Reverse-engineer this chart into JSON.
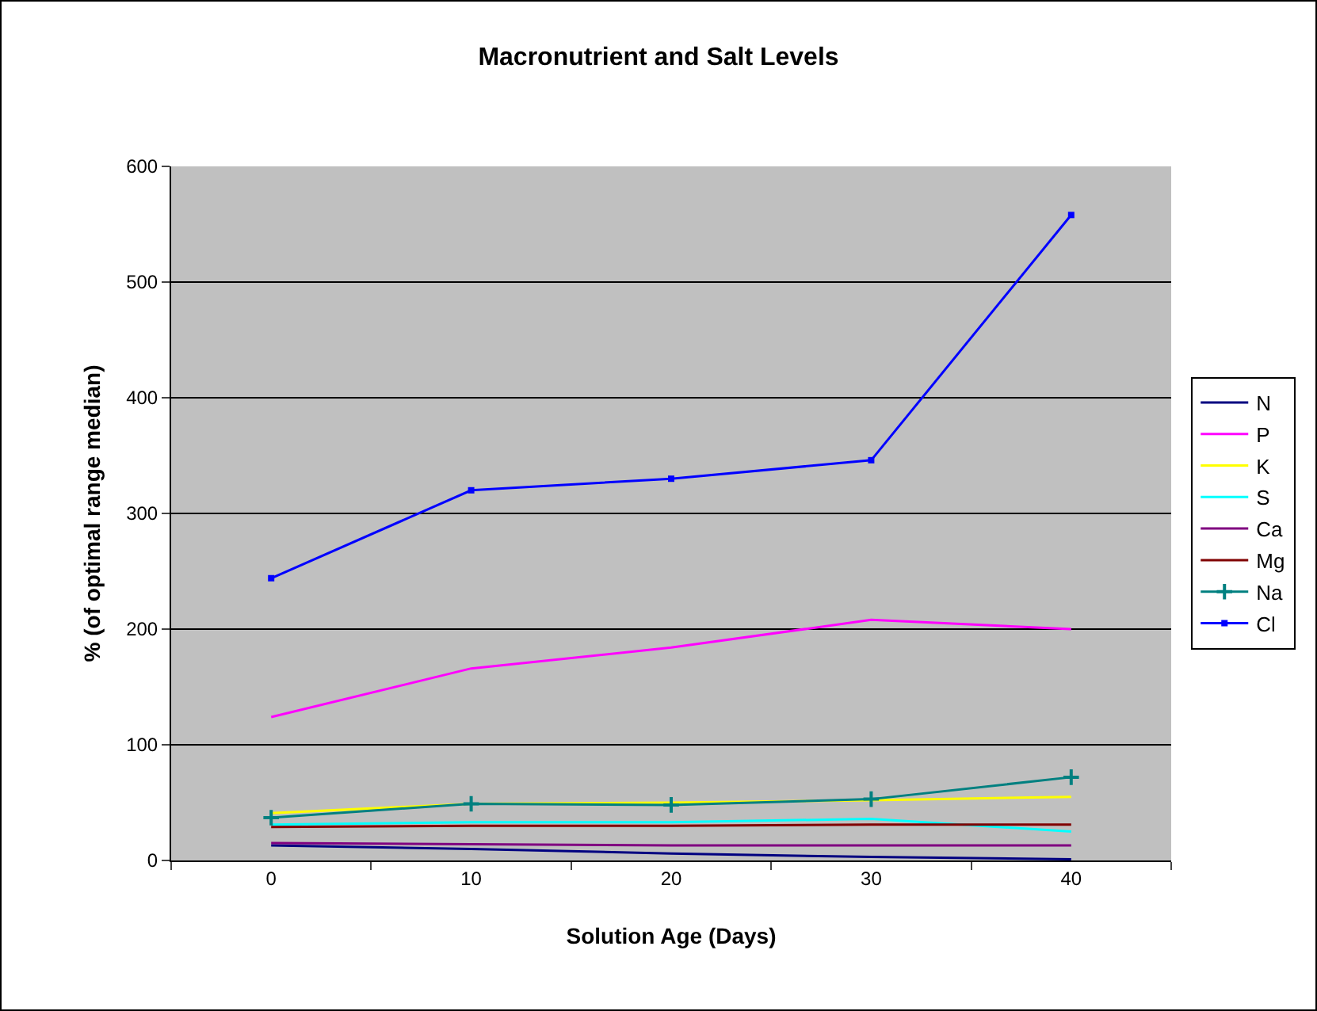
{
  "chart_data": {
    "type": "line",
    "title": "Macronutrient and Salt Levels",
    "xlabel": "Solution Age (Days)",
    "ylabel": "% (of optimal range median)",
    "categories": [
      "0",
      "10",
      "20",
      "30",
      "40"
    ],
    "series": [
      {
        "name": "N",
        "color": "#000080",
        "marker": "none",
        "values": [
          13,
          10,
          6,
          3,
          1
        ]
      },
      {
        "name": "P",
        "color": "#ff00ff",
        "marker": "none",
        "values": [
          124,
          166,
          184,
          208,
          200
        ]
      },
      {
        "name": "K",
        "color": "#ffff00",
        "marker": "none",
        "values": [
          41,
          49,
          50,
          52,
          55
        ]
      },
      {
        "name": "S",
        "color": "#00ffff",
        "marker": "none",
        "values": [
          31,
          33,
          33,
          36,
          25
        ]
      },
      {
        "name": "Ca",
        "color": "#800080",
        "marker": "none",
        "values": [
          15,
          14,
          13,
          13,
          13
        ]
      },
      {
        "name": "Mg",
        "color": "#800000",
        "marker": "none",
        "values": [
          29,
          30,
          30,
          31,
          31
        ]
      },
      {
        "name": "Na",
        "color": "#008080",
        "marker": "cross",
        "values": [
          37,
          49,
          48,
          53,
          72
        ]
      },
      {
        "name": "Cl",
        "color": "#0000ff",
        "marker": "square",
        "values": [
          244,
          320,
          330,
          346,
          558
        ]
      }
    ],
    "ylim": [
      0,
      600
    ],
    "yticks": [
      0,
      100,
      200,
      300,
      400,
      500,
      600
    ],
    "grid": "y",
    "legend": "right",
    "line_style": "solid"
  }
}
